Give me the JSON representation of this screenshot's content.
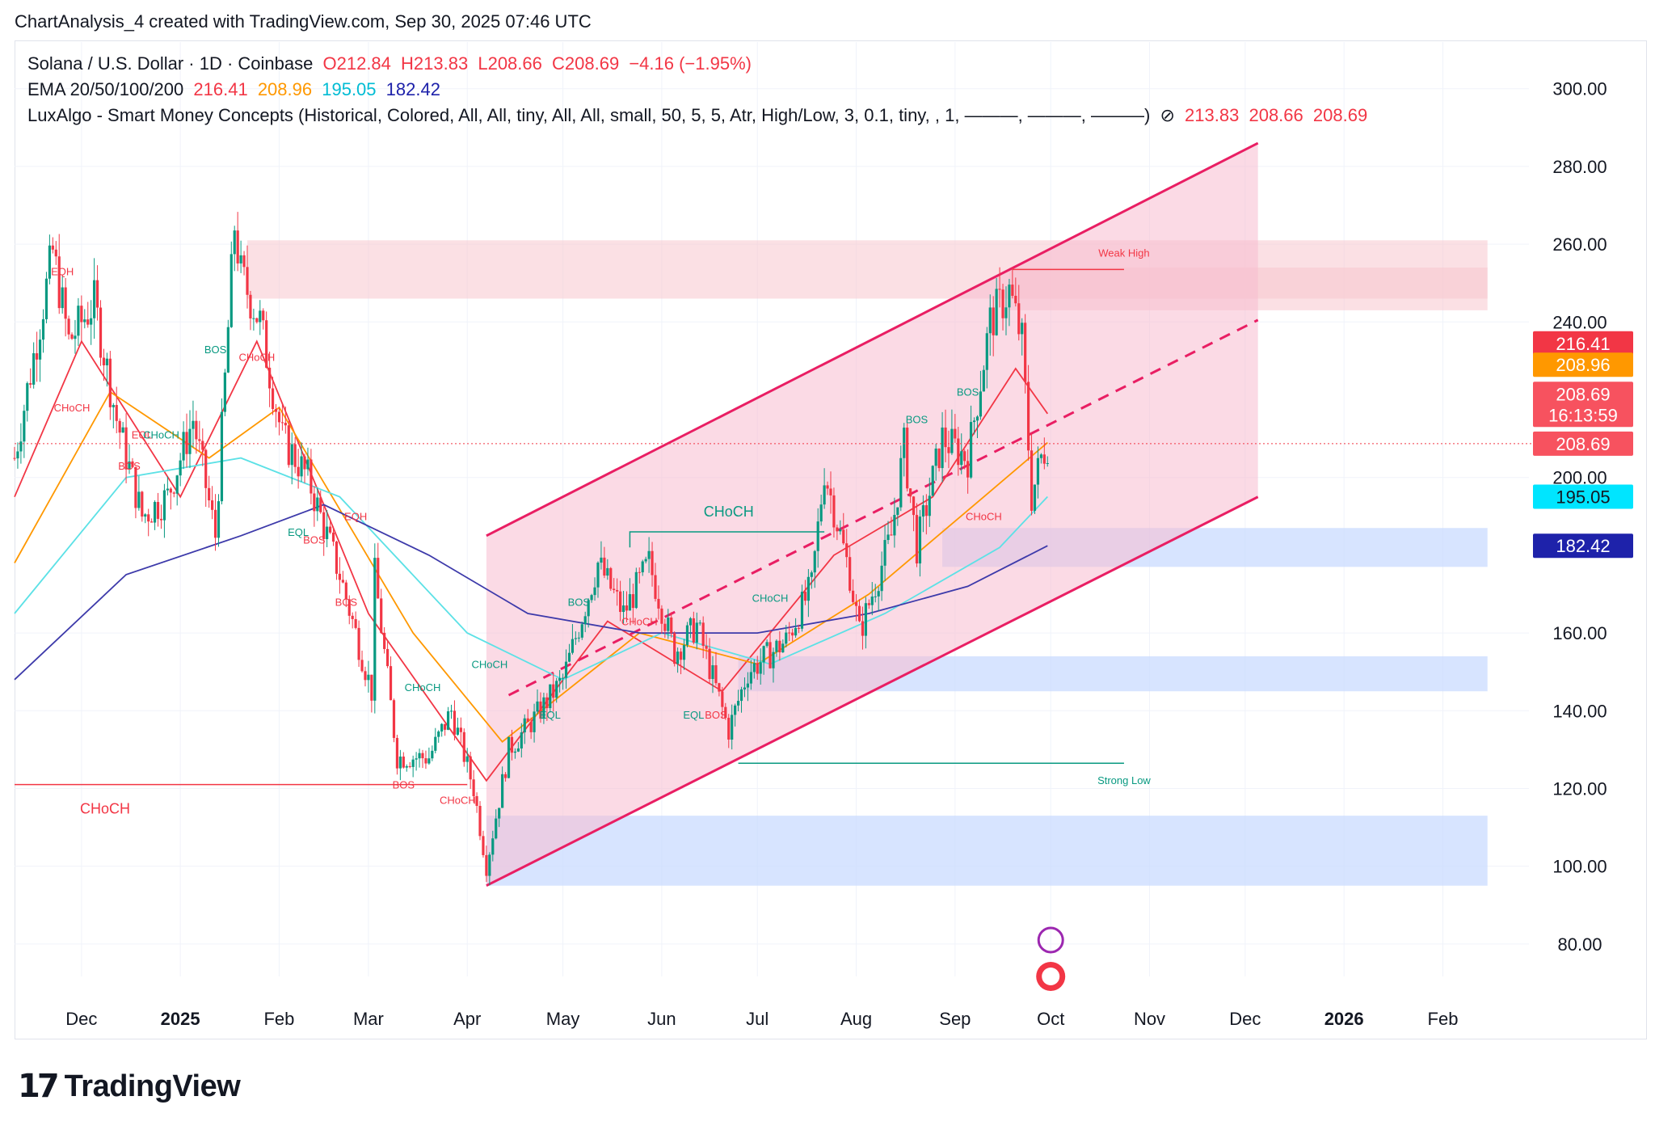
{
  "header": {
    "credit": "ChartAnalysis_4 created with TradingView.com, Sep 30, 2025 07:46 UTC"
  },
  "legend": {
    "symbol": "Solana / U.S. Dollar · 1D · Coinbase",
    "open": "O212.84",
    "high": "H213.83",
    "low": "L208.66",
    "close": "C208.69",
    "change": "−4.16 (−1.95%)",
    "ema_label": "EMA 20/50/100/200",
    "ema20": "216.41",
    "ema50": "208.96",
    "ema100": "195.05",
    "ema200": "182.42",
    "indicator": "LuxAlgo - Smart Money Concepts (Historical, Colored, All, All, tiny, All, All, small, 50, 5, 5, Atr, High/Low, 3, 0.1, tiny, , 1, ———, ———, ———)",
    "ind_h": "213.83",
    "ind_l": "208.66",
    "ind_c": "208.69"
  },
  "colors": {
    "up": "#089981",
    "down": "#f23645",
    "ema20": "#f23645",
    "ema50": "#ff9800",
    "ema100": "#5ce1e6",
    "ema200": "#3d3aaa",
    "channel": "#e91e63",
    "bear_zone": "#f7c7cd",
    "bull_zone": "#c9dbff"
  },
  "price_badges": {
    "ema20": "216.41",
    "ema50": "208.96",
    "last": "208.69",
    "countdown": "16:13:59",
    "close": "208.69",
    "ema100": "195.05",
    "ema200": "182.42"
  },
  "annotations": {
    "weak_high": "Weak High",
    "strong_low": "Strong Low",
    "choch_big": "CHoCH",
    "choch_left": "CHoCH"
  },
  "brand": {
    "name": "TradingView"
  },
  "chart_data": {
    "type": "candlestick",
    "y_axis_ticks": [
      "300.00",
      "280.00",
      "260.00",
      "240.00",
      "200.00",
      "160.00",
      "140.00",
      "120.00",
      "100.00",
      "80.00"
    ],
    "ylim": [
      65,
      312
    ],
    "x_axis_labels": [
      "Dec",
      "2025",
      "Feb",
      "Mar",
      "Apr",
      "May",
      "Jun",
      "Jul",
      "Aug",
      "Sep",
      "Oct",
      "Nov",
      "Dec",
      "2026",
      "Feb"
    ],
    "x_axis_bold": [
      "2025",
      "2026"
    ],
    "price_path": [
      [
        "2024-11-10",
        205
      ],
      [
        "2024-11-18",
        240
      ],
      [
        "2024-11-22",
        258
      ],
      [
        "2024-11-27",
        235
      ],
      [
        "2024-12-05",
        245
      ],
      [
        "2024-12-12",
        215
      ],
      [
        "2024-12-20",
        190
      ],
      [
        "2024-12-28",
        195
      ],
      [
        "2025-01-05",
        215
      ],
      [
        "2025-01-12",
        185
      ],
      [
        "2025-01-18",
        265
      ],
      [
        "2025-01-20",
        252
      ],
      [
        "2025-01-26",
        240
      ],
      [
        "2025-02-02",
        210
      ],
      [
        "2025-02-10",
        200
      ],
      [
        "2025-02-20",
        175
      ],
      [
        "2025-03-02",
        145
      ],
      [
        "2025-03-03",
        175
      ],
      [
        "2025-03-10",
        128
      ],
      [
        "2025-03-20",
        128
      ],
      [
        "2025-03-27",
        140
      ],
      [
        "2025-04-03",
        120
      ],
      [
        "2025-04-07",
        100
      ],
      [
        "2025-04-14",
        130
      ],
      [
        "2025-04-22",
        138
      ],
      [
        "2025-05-01",
        148
      ],
      [
        "2025-05-12",
        178
      ],
      [
        "2025-05-20",
        165
      ],
      [
        "2025-05-28",
        178
      ],
      [
        "2025-06-05",
        155
      ],
      [
        "2025-06-12",
        162
      ],
      [
        "2025-06-22",
        135
      ],
      [
        "2025-06-28",
        150
      ],
      [
        "2025-07-10",
        158
      ],
      [
        "2025-07-18",
        172
      ],
      [
        "2025-07-22",
        202
      ],
      [
        "2025-07-30",
        175
      ],
      [
        "2025-08-02",
        160
      ],
      [
        "2025-08-12",
        185
      ],
      [
        "2025-08-16",
        208
      ],
      [
        "2025-08-20",
        182
      ],
      [
        "2025-08-28",
        210
      ],
      [
        "2025-09-05",
        205
      ],
      [
        "2025-09-12",
        240
      ],
      [
        "2025-09-18",
        248
      ],
      [
        "2025-09-22",
        235
      ],
      [
        "2025-09-25",
        195
      ],
      [
        "2025-09-28",
        205
      ],
      [
        "2025-09-30",
        208.69
      ]
    ],
    "ema_series": [
      {
        "name": "EMA 20",
        "value": 216.41,
        "points": [
          [
            "2024-11-10",
            195
          ],
          [
            "2024-12-01",
            235
          ],
          [
            "2025-01-01",
            195
          ],
          [
            "2025-01-25",
            235
          ],
          [
            "2025-03-01",
            165
          ],
          [
            "2025-04-07",
            122
          ],
          [
            "2025-05-15",
            163
          ],
          [
            "2025-06-20",
            145
          ],
          [
            "2025-07-25",
            180
          ],
          [
            "2025-08-25",
            195
          ],
          [
            "2025-09-20",
            228
          ],
          [
            "2025-09-30",
            216.41
          ]
        ]
      },
      {
        "name": "EMA 50",
        "value": 208.96,
        "points": [
          [
            "2024-11-10",
            178
          ],
          [
            "2024-12-10",
            222
          ],
          [
            "2025-01-10",
            205
          ],
          [
            "2025-02-01",
            218
          ],
          [
            "2025-03-15",
            160
          ],
          [
            "2025-04-12",
            132
          ],
          [
            "2025-05-25",
            160
          ],
          [
            "2025-07-01",
            152
          ],
          [
            "2025-08-05",
            170
          ],
          [
            "2025-09-10",
            195
          ],
          [
            "2025-09-30",
            208.96
          ]
        ]
      },
      {
        "name": "EMA 100",
        "value": 195.05,
        "points": [
          [
            "2024-11-10",
            165
          ],
          [
            "2024-12-15",
            200
          ],
          [
            "2025-01-20",
            205
          ],
          [
            "2025-02-20",
            195
          ],
          [
            "2025-04-01",
            160
          ],
          [
            "2025-05-01",
            148
          ],
          [
            "2025-06-01",
            160
          ],
          [
            "2025-07-05",
            152
          ],
          [
            "2025-08-10",
            165
          ],
          [
            "2025-09-15",
            182
          ],
          [
            "2025-09-30",
            195.05
          ]
        ]
      },
      {
        "name": "EMA 200",
        "value": 182.42,
        "points": [
          [
            "2024-11-10",
            148
          ],
          [
            "2024-12-15",
            175
          ],
          [
            "2025-01-20",
            185
          ],
          [
            "2025-02-15",
            193
          ],
          [
            "2025-03-20",
            180
          ],
          [
            "2025-04-20",
            165
          ],
          [
            "2025-05-25",
            160
          ],
          [
            "2025-07-01",
            160
          ],
          [
            "2025-08-05",
            165
          ],
          [
            "2025-09-05",
            172
          ],
          [
            "2025-09-30",
            182.42
          ]
        ]
      }
    ],
    "channel": {
      "start_date": "2025-04-07",
      "end_date": "2025-12-05",
      "upper": [
        185,
        286
      ],
      "lower": [
        95,
        195
      ],
      "mid": [
        140,
        240.5
      ]
    },
    "zones": [
      {
        "kind": "supply",
        "from": "2025-01-22",
        "to": "2026-02-15",
        "low": 246,
        "high": 261
      },
      {
        "kind": "supply",
        "from": "2025-09-18",
        "to": "2026-02-15",
        "low": 243,
        "high": 254
      },
      {
        "kind": "demand",
        "from": "2025-08-28",
        "to": "2026-02-15",
        "low": 177,
        "high": 187
      },
      {
        "kind": "demand",
        "from": "2025-06-25",
        "to": "2026-02-15",
        "low": 145,
        "high": 154
      },
      {
        "kind": "demand",
        "from": "2025-04-07",
        "to": "2026-02-15",
        "low": 95,
        "high": 113
      }
    ],
    "structure_labels": [
      {
        "text": "EQH",
        "date": "2024-11-25",
        "price": 252,
        "color": "down"
      },
      {
        "text": "CHoCH",
        "date": "2024-11-28",
        "price": 217,
        "color": "down"
      },
      {
        "text": "EQL",
        "date": "2024-12-20",
        "price": 210,
        "color": "down"
      },
      {
        "text": "CHoCH",
        "date": "2024-12-26",
        "price": 210,
        "color": "up"
      },
      {
        "text": "BOS",
        "date": "2024-12-16",
        "price": 202,
        "color": "down"
      },
      {
        "text": "BOS",
        "date": "2025-01-12",
        "price": 232,
        "color": "up"
      },
      {
        "text": "CHoCH",
        "date": "2025-01-25",
        "price": 230,
        "color": "down"
      },
      {
        "text": "EQL",
        "date": "2025-02-07",
        "price": 185,
        "color": "up"
      },
      {
        "text": "BOS",
        "date": "2025-02-12",
        "price": 183,
        "color": "down"
      },
      {
        "text": "EQH",
        "date": "2025-02-25",
        "price": 189,
        "color": "down"
      },
      {
        "text": "BOS",
        "date": "2025-02-22",
        "price": 167,
        "color": "down"
      },
      {
        "text": "CHoCH",
        "date": "2025-03-18",
        "price": 145,
        "color": "up"
      },
      {
        "text": "BOS",
        "date": "2025-03-12",
        "price": 120,
        "color": "down"
      },
      {
        "text": "CHoCH",
        "date": "2025-03-29",
        "price": 116,
        "color": "down"
      },
      {
        "text": "CHoCH",
        "date": "2025-04-08",
        "price": 151,
        "color": "up"
      },
      {
        "text": "BOS",
        "date": "2025-05-06",
        "price": 167,
        "color": "up"
      },
      {
        "text": "EQL",
        "date": "2025-04-27",
        "price": 138,
        "color": "up"
      },
      {
        "text": "CHoCH",
        "date": "2025-05-25",
        "price": 162,
        "color": "down"
      },
      {
        "text": "EQL",
        "date": "2025-06-11",
        "price": 138,
        "color": "up"
      },
      {
        "text": "BOS",
        "date": "2025-06-18",
        "price": 138,
        "color": "down"
      },
      {
        "text": "CHoCH",
        "date": "2025-07-05",
        "price": 168,
        "color": "up"
      },
      {
        "text": "BOS",
        "date": "2025-08-20",
        "price": 214,
        "color": "up"
      },
      {
        "text": "BOS",
        "date": "2025-09-05",
        "price": 221,
        "color": "up"
      },
      {
        "text": "CHoCH",
        "date": "2025-09-10",
        "price": 189,
        "color": "down"
      }
    ]
  }
}
